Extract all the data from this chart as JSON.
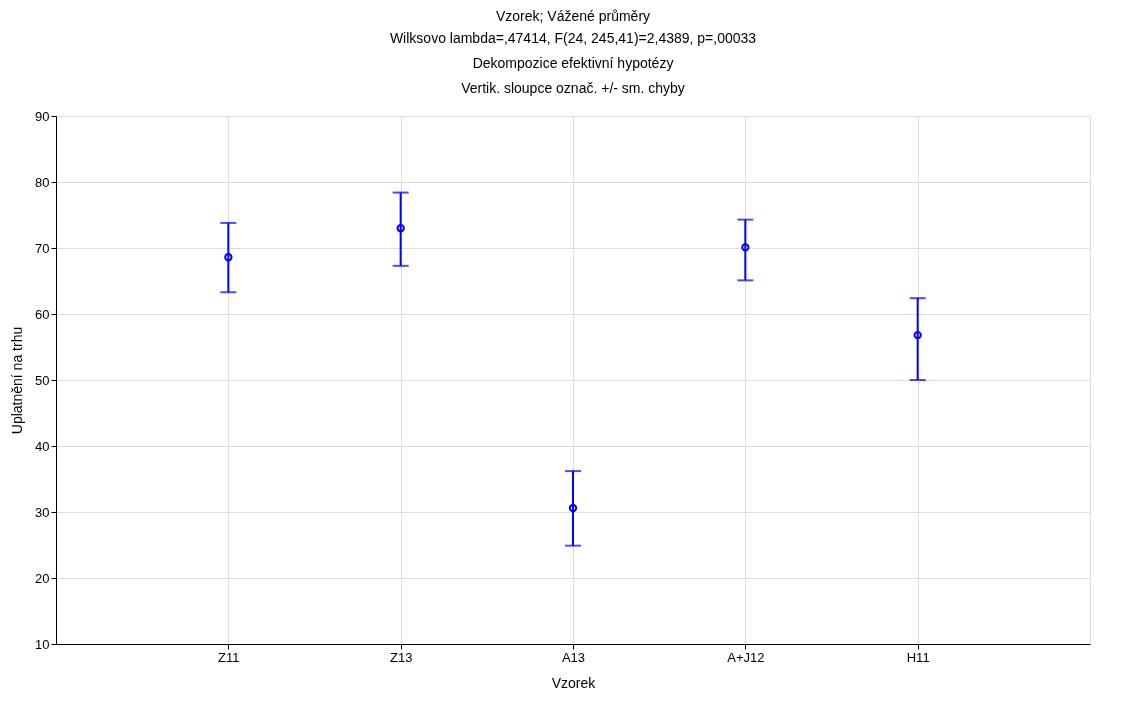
{
  "chart_data": {
    "type": "scatter",
    "title": "Vzorek; Vážené průměry",
    "subtitle": "Wilksovo lambda=,47414, F(24, 245,41)=2,4389, p=,00033\nDekompozice efektivní hypotézy\nVertik. sloupce označ. +/- sm. chyby",
    "xlabel": "Vzorek",
    "ylabel": "Uplatnění na trhu",
    "categories": [
      "Z11",
      "Z13",
      "A13",
      "A+J12",
      "H11"
    ],
    "series": [
      {
        "color": "#0000ff",
        "values": [
          68.6,
          73.0,
          30.6,
          70.1,
          56.8
        ],
        "errors": [
          [
            63.3,
            73.8
          ],
          [
            67.3,
            78.4
          ],
          [
            24.9,
            36.2
          ],
          [
            65.1,
            74.3
          ],
          [
            50.0,
            62.4
          ]
        ]
      }
    ],
    "ylim": [
      10,
      90
    ],
    "yticks": [
      10,
      20,
      30,
      40,
      50,
      60,
      70,
      80,
      90
    ],
    "grid": true,
    "marker": "circle"
  }
}
